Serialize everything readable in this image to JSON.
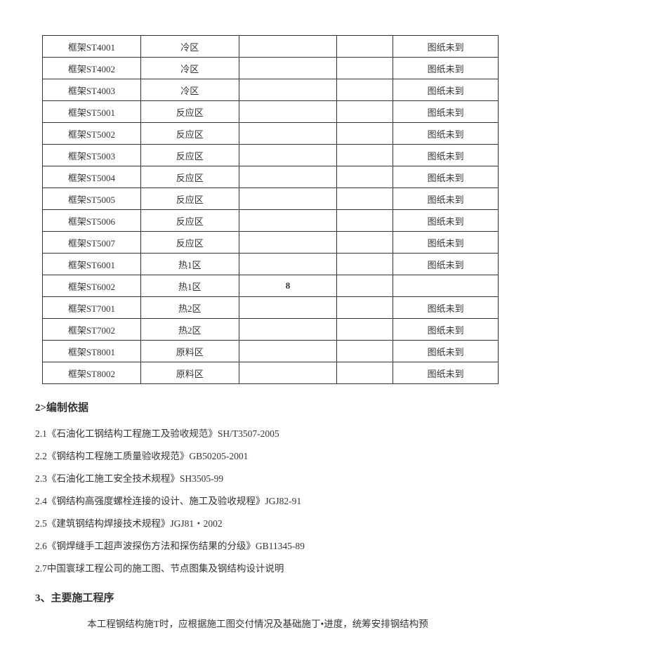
{
  "table": {
    "columns_widths": [
      140,
      140,
      140,
      80,
      150
    ],
    "rows": [
      [
        "框架ST4001",
        "冷区",
        "",
        "",
        "图纸未到"
      ],
      [
        "框架ST4002",
        "冷区",
        "",
        "",
        "图纸未到"
      ],
      [
        "框架ST4003",
        "冷区",
        "",
        "",
        "图纸未到"
      ],
      [
        "框架ST5001",
        "反应区",
        "",
        "",
        "图纸未到"
      ],
      [
        "框架ST5002",
        "反应区",
        "",
        "",
        "图纸未到"
      ],
      [
        "框架ST5003",
        "反应区",
        "",
        "",
        "图纸未到"
      ],
      [
        "框架ST5004",
        "反应区",
        "",
        "",
        "图纸未到"
      ],
      [
        "框架ST5005",
        "反应区",
        "",
        "",
        "图纸未到"
      ],
      [
        "框架ST5006",
        "反应区",
        "",
        "",
        "图纸未到"
      ],
      [
        "框架ST5007",
        "反应区",
        "",
        "",
        "图纸未到"
      ],
      [
        "框架ST6001",
        "热1区",
        "",
        "",
        "图纸未到"
      ],
      [
        "框架ST6002",
        "热1区",
        "8",
        "",
        ""
      ],
      [
        "框架ST7001",
        "热2区",
        "",
        "",
        "图纸未到"
      ],
      [
        "框架ST7002",
        "热2区",
        "",
        "",
        "图纸未到"
      ],
      [
        "框架ST8001",
        "原料区",
        "",
        "",
        "图纸未到"
      ],
      [
        "框架ST8002",
        "原料区",
        "",
        "",
        "图纸未到"
      ]
    ]
  },
  "section2": {
    "heading": "2>编制依据",
    "refs": [
      "2.1《石油化工钢结构工程施工及验收规范》SH/T3507-2005",
      "2.2《钢结构工程施工质量验收规范》GB50205-2001",
      "2.3《石油化工施工安全技术规程》SH3505-99",
      "2.4《钢结构高强度螺栓连接的设计、施工及验收规程》JGJ82-91",
      "2.5《建筑钢结构焊接技术规程》JGJ81・2002",
      "2.6《钢焊缝手工超声波探伤方法和探伤结果的分级》GB11345-89",
      "2.7中国寰球工程公司的施工图、节点图集及钢结构设计说明"
    ]
  },
  "section3": {
    "heading": "3、主要施工程序",
    "para": "本工程钢结构施T时，应根据施工图交付情况及基础施丁•进度，统筹安排钢结构预"
  }
}
